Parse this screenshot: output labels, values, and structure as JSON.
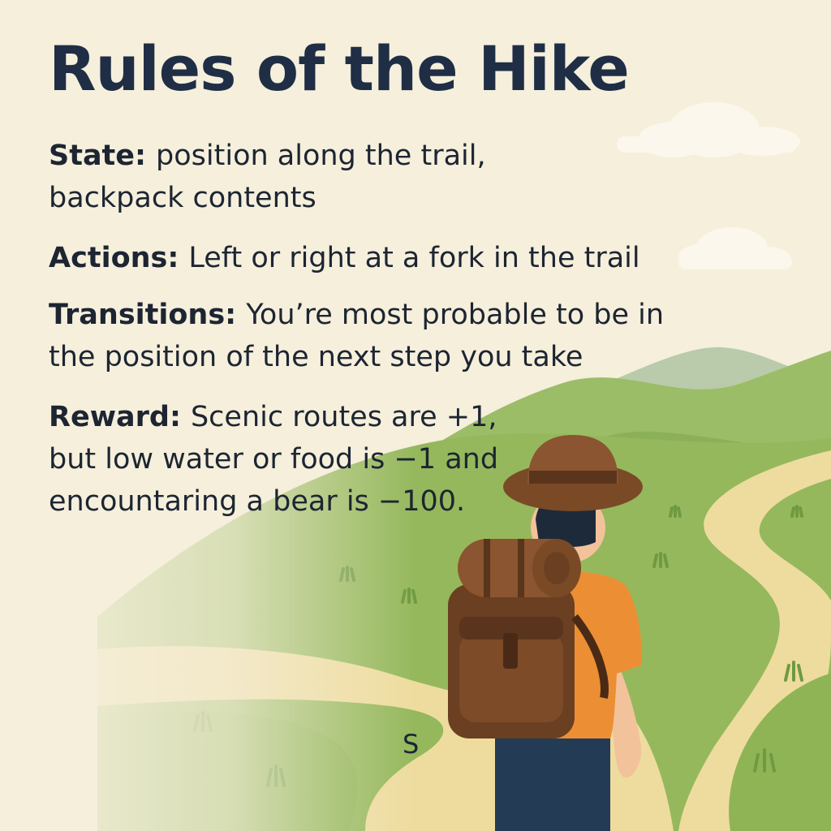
{
  "title": "Rules of the Hike",
  "rules": [
    {
      "label": "State:",
      "text": "position along the trail, backpack contents"
    },
    {
      "label": "Actions:",
      "text": "Left or right at a fork in the trail"
    },
    {
      "label": "Transitions:",
      "text": "You’re most probable to be in the position of the next step you take"
    },
    {
      "label": "Reward:",
      "text": "Scenic routes are +1, but low water or food is −1 and encountaring a bear is −100."
    }
  ],
  "start_marker": "S",
  "colors": {
    "background": "#f5efdc",
    "title": "#1f2e45",
    "grass": "#93b65a",
    "trail": "#eedc9e",
    "hat": "#7a4a26",
    "shirt": "#ec8f34",
    "pants": "#243b55"
  }
}
